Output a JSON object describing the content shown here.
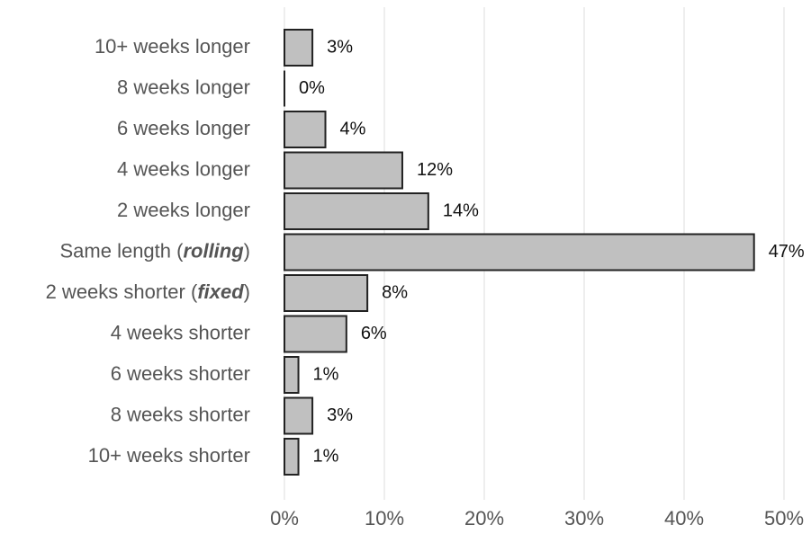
{
  "chart_data": {
    "type": "barh",
    "categories": [
      "10+ weeks longer",
      "8 weeks longer",
      "6 weeks longer",
      "4 weeks longer",
      "2 weeks longer",
      "Same length (rolling)",
      "2 weeks shorter (fixed)",
      "4 weeks shorter",
      "6 weeks shorter",
      "8 weeks shorter",
      "10+ weeks shorter"
    ],
    "values": [
      2.8,
      0,
      4.1,
      11.8,
      14.4,
      47,
      8.3,
      6.2,
      1.4,
      2.8,
      1.4
    ],
    "value_labels": [
      "3%",
      "0%",
      "4%",
      "12%",
      "14%",
      "47%",
      "8%",
      "6%",
      "1%",
      "3%",
      "1%"
    ],
    "color": "#c0c0c0",
    "xlim": [
      0,
      50
    ],
    "xticks": [
      {
        "value": 0,
        "label": "0%"
      },
      {
        "value": 10,
        "label": "10%"
      },
      {
        "value": 20,
        "label": "20%"
      },
      {
        "value": 30,
        "label": "30%"
      },
      {
        "value": 40,
        "label": "40%"
      },
      {
        "value": 50,
        "label": "50%"
      }
    ],
    "grid": true
  }
}
